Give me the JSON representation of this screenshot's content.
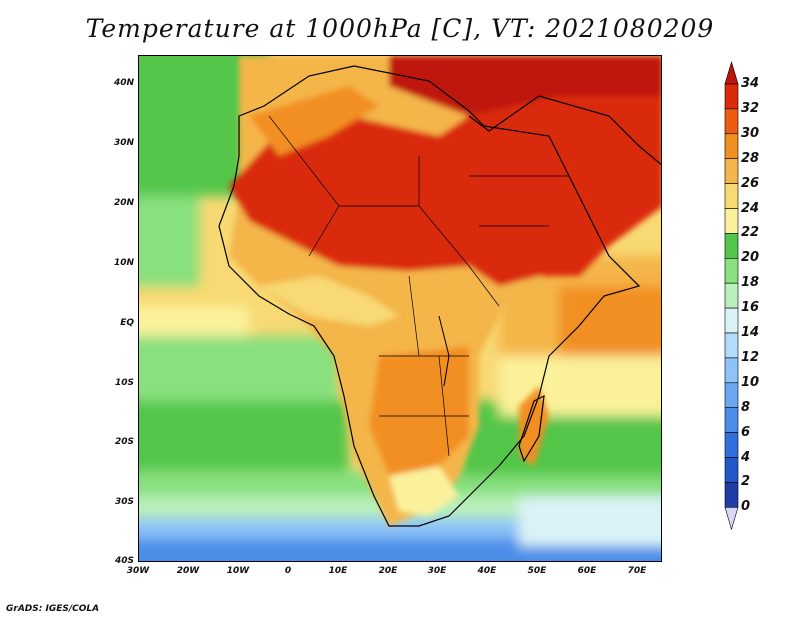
{
  "title": "Temperature at 1000hPa [C], VT: 2021080209",
  "footer": "GrADS: IGES/COLA",
  "map": {
    "lon_ticks": [
      "30W",
      "20W",
      "10W",
      "0",
      "10E",
      "20E",
      "30E",
      "40E",
      "50E",
      "60E",
      "70E"
    ],
    "lat_ticks": [
      "40N",
      "30N",
      "20N",
      "10N",
      "EQ",
      "10S",
      "20S",
      "30S",
      "40S"
    ],
    "lon_range": [
      -30,
      75
    ],
    "lat_range": [
      -40,
      45
    ],
    "units": "C"
  },
  "colorbar": {
    "labels": [
      "0",
      "2",
      "4",
      "6",
      "8",
      "10",
      "12",
      "14",
      "16",
      "18",
      "20",
      "22",
      "24",
      "26",
      "28",
      "30",
      "32",
      "34"
    ],
    "colors": [
      "#150e6e",
      "#1f3ea8",
      "#2257c8",
      "#2f6fde",
      "#4b8ee8",
      "#6aa8f0",
      "#8dc3f6",
      "#b3dcfa",
      "#dbf3f7",
      "#b9f0bb",
      "#88e07e",
      "#52c64a",
      "#fbf19b",
      "#f8d973",
      "#f4b54a",
      "#f28f22",
      "#ee5c10",
      "#da2a0a",
      "#bf1509"
    ]
  }
}
